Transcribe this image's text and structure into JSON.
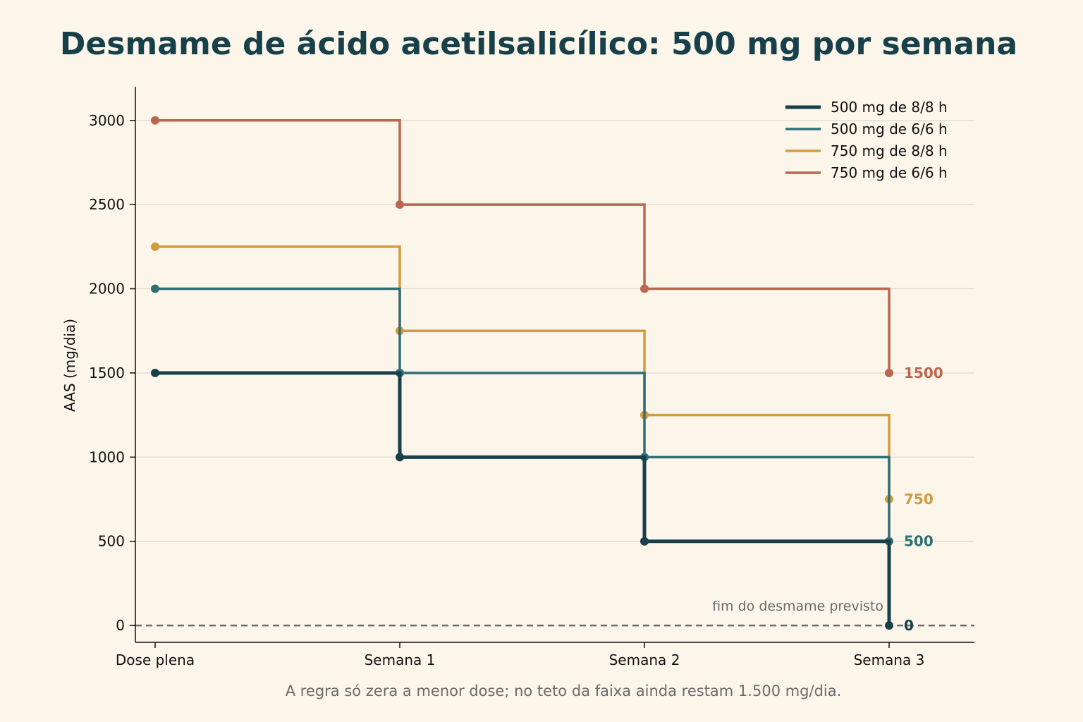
{
  "chart_data": {
    "type": "line",
    "title": "Desmame de ácido acetilsalicílico: 500 mg por semana",
    "xlabel": "",
    "ylabel": "AAS (mg/dia)",
    "categories": [
      "Dose plena",
      "Semana 1",
      "Semana 2",
      "Semana 3"
    ],
    "ylim": [
      -100,
      3200
    ],
    "yticks": [
      0,
      500,
      1000,
      1500,
      2000,
      2500,
      3000
    ],
    "grid": "horizontal",
    "legend_position": "top-right",
    "step": "post",
    "series": [
      {
        "name": "500 mg de 8/8 h",
        "values": [
          1500,
          1000,
          500,
          0
        ],
        "color": "#17404a",
        "width": 5,
        "end_label": "0"
      },
      {
        "name": "500 mg de 6/6 h",
        "values": [
          2000,
          1500,
          1000,
          500
        ],
        "color": "#2f6e74",
        "width": 3.5,
        "end_label": "500"
      },
      {
        "name": "750 mg de 8/8 h",
        "values": [
          2250,
          1750,
          1250,
          750
        ],
        "color": "#d39b3c",
        "width": 3.5,
        "end_label": "750"
      },
      {
        "name": "750 mg de 6/6 h",
        "values": [
          3000,
          2500,
          2000,
          1500
        ],
        "color": "#bb6650",
        "width": 3.5,
        "end_label": "1500"
      }
    ],
    "reference_line": {
      "y": 0,
      "label": "fim do desmame previsto",
      "color": "#6b6b6b"
    },
    "footnote": "A regra só zera a menor dose; no teto da faixa ainda restam 1.500 mg/dia."
  }
}
